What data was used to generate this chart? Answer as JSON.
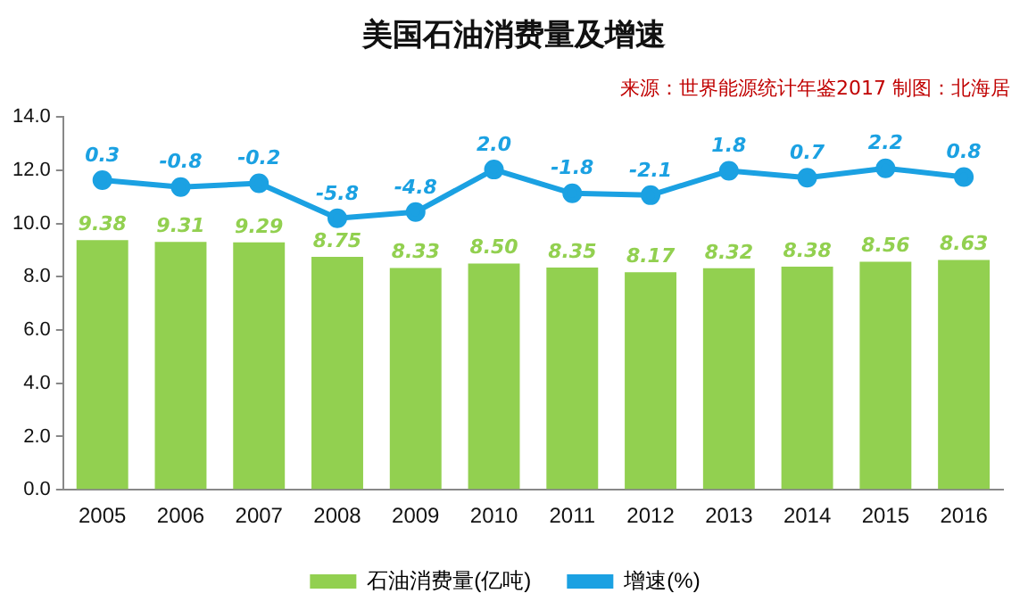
{
  "chart_data": {
    "type": "bar",
    "title": "美国石油消费量及增速",
    "annotations": [
      "来源：世界能源统计年鉴2017 制图：北海居"
    ],
    "categories": [
      "2005",
      "2006",
      "2007",
      "2008",
      "2009",
      "2010",
      "2011",
      "2012",
      "2013",
      "2014",
      "2015",
      "2016"
    ],
    "series": [
      {
        "name": "石油消费量(亿吨)",
        "color": "#92d050",
        "values": [
          9.38,
          9.31,
          9.29,
          8.75,
          8.33,
          8.5,
          8.35,
          8.17,
          8.32,
          8.38,
          8.56,
          8.63
        ],
        "value_labels": [
          "9.38",
          "9.31",
          "9.29",
          "8.75",
          "8.33",
          "8.50",
          "8.35",
          "8.17",
          "8.32",
          "8.38",
          "8.56",
          "8.63"
        ]
      },
      {
        "name": "增速(%)",
        "type": "line",
        "axis": "y2",
        "color": "#1ba1e2",
        "values": [
          0.3,
          -0.8,
          -0.2,
          -5.8,
          -4.8,
          2.0,
          -1.8,
          -2.1,
          1.8,
          0.7,
          2.2,
          0.8
        ],
        "value_labels": [
          "0.3",
          "-0.8",
          "-0.2",
          "-5.8",
          "-4.8",
          "2.0",
          "-1.8",
          "-2.1",
          "1.8",
          "0.7",
          "2.2",
          "0.8"
        ]
      }
    ],
    "ylim": [
      0,
      14
    ],
    "yticks": [
      {
        "value": 0,
        "label": "0.0"
      },
      {
        "value": 2,
        "label": "2.0"
      },
      {
        "value": 4,
        "label": "4.0"
      },
      {
        "value": 6,
        "label": "6.0"
      },
      {
        "value": 8,
        "label": "8.0"
      },
      {
        "value": 10,
        "label": "10.0"
      },
      {
        "value": 12,
        "label": "12.0"
      },
      {
        "value": 14,
        "label": "14.0"
      }
    ],
    "y2lim": [
      -49.2,
      10.4
    ],
    "legend": "bottom",
    "grid": false,
    "marker": "circle",
    "line_style": "solid"
  }
}
